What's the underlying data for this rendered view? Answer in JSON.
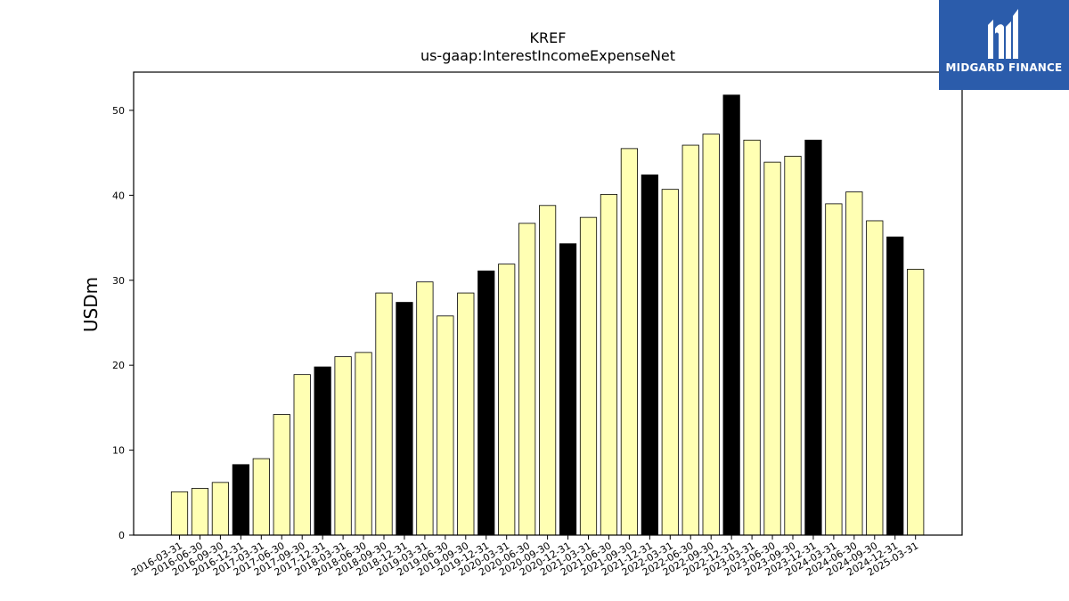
{
  "brand": {
    "name": "MIDGARD FINANCE",
    "bg_color": "#2b5cab"
  },
  "chart_data": {
    "type": "bar",
    "title": "KREF",
    "subtitle": "us-gaap:InterestIncomeExpenseNet",
    "xlabel": "",
    "ylabel": "USDm",
    "ylim": [
      0,
      54.5
    ],
    "yticks": [
      0,
      10,
      20,
      30,
      40,
      50
    ],
    "grid": false,
    "colors": {
      "quarter": "#ffffb3",
      "year_end": "#000000",
      "edge": "#000000"
    },
    "categories": [
      "2016-03-31",
      "2016-06-30",
      "2016-09-30",
      "2016-12-31",
      "2017-03-31",
      "2017-06-30",
      "2017-09-30",
      "2017-12-31",
      "2018-03-31",
      "2018-06-30",
      "2018-09-30",
      "2018-12-31",
      "2019-03-31",
      "2019-06-30",
      "2019-09-30",
      "2019-12-31",
      "2020-03-31",
      "2020-06-30",
      "2020-09-30",
      "2020-12-31",
      "2021-03-31",
      "2021-06-30",
      "2021-09-30",
      "2021-12-31",
      "2022-03-31",
      "2022-06-30",
      "2022-09-30",
      "2022-12-31",
      "2023-03-31",
      "2023-06-30",
      "2023-09-30",
      "2023-12-31",
      "2024-03-31",
      "2024-06-30",
      "2024-09-30",
      "2024-12-31",
      "2025-03-31"
    ],
    "values": [
      5.1,
      5.5,
      6.2,
      8.3,
      9.0,
      14.2,
      18.9,
      19.8,
      21.0,
      21.5,
      28.5,
      27.4,
      29.8,
      25.8,
      28.5,
      31.1,
      31.9,
      36.7,
      38.8,
      34.3,
      37.4,
      40.1,
      45.5,
      42.4,
      40.7,
      45.9,
      47.2,
      51.8,
      46.5,
      43.9,
      44.6,
      46.5,
      39.0,
      40.4,
      37.0,
      35.1,
      31.3
    ]
  }
}
